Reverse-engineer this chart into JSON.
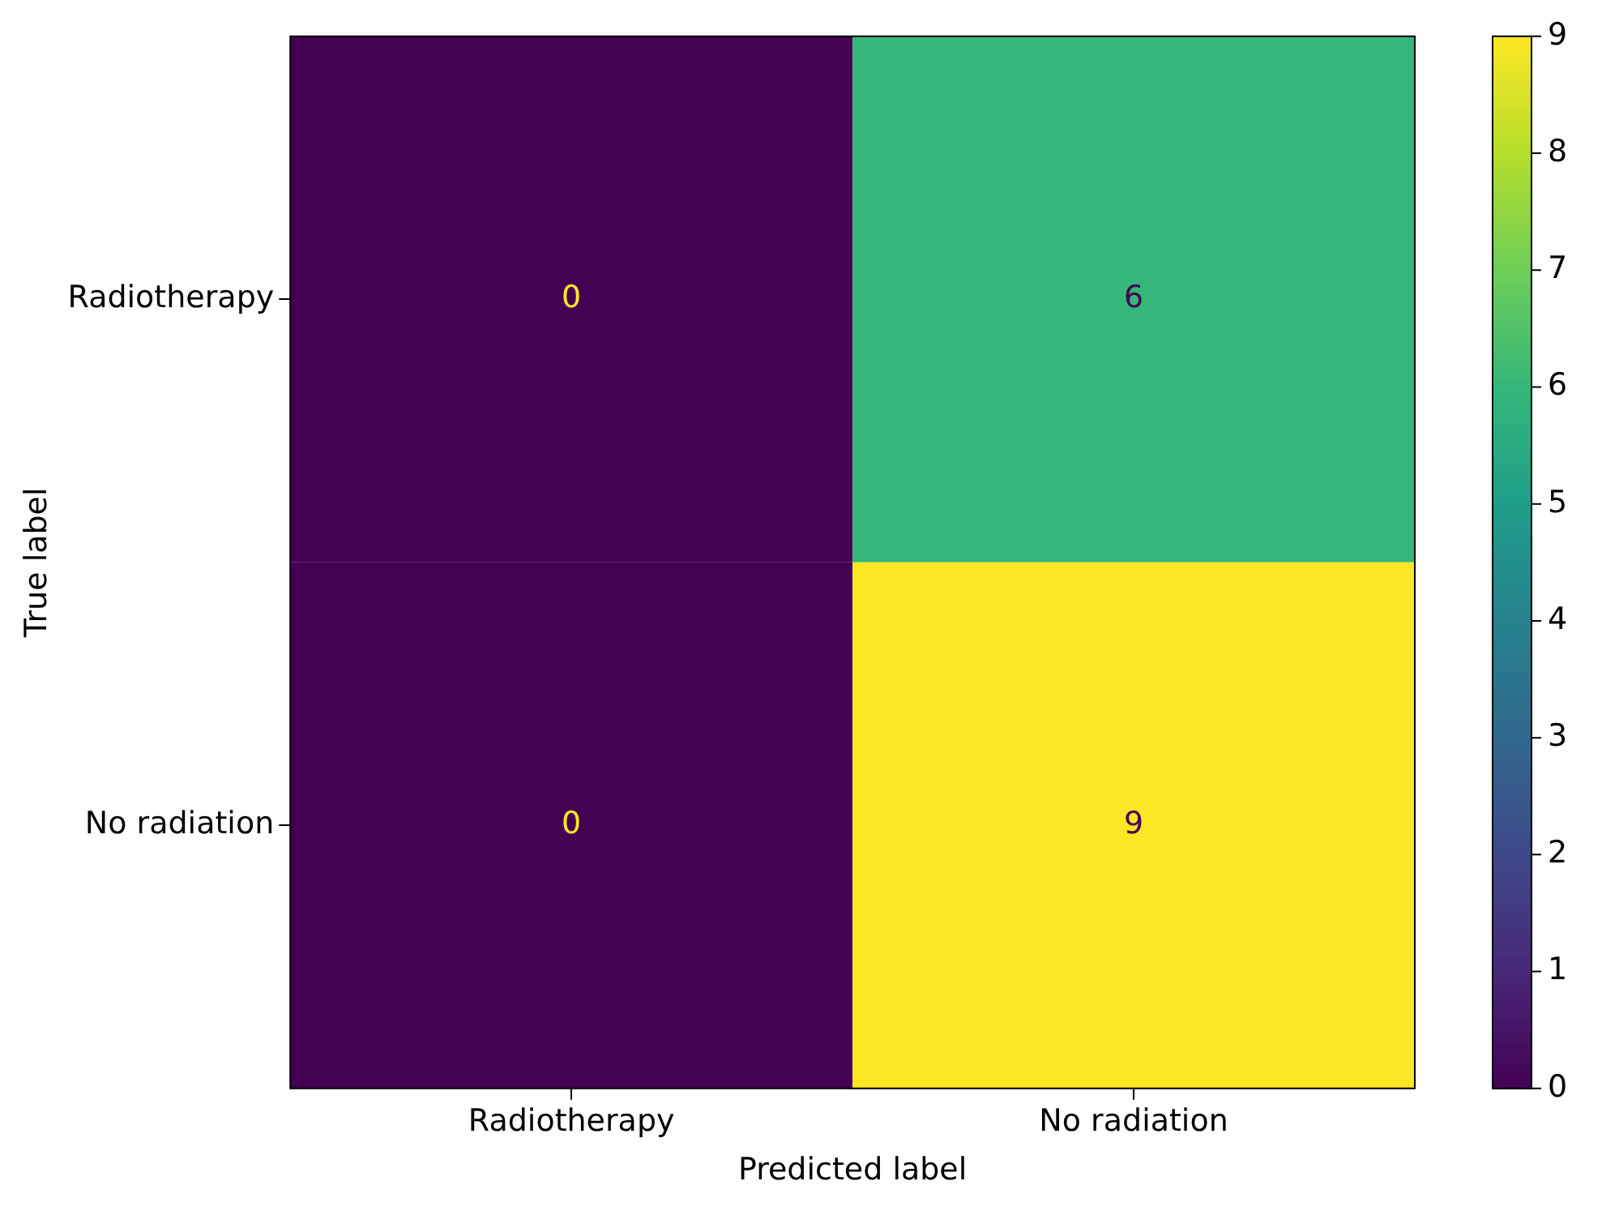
{
  "chart_data": {
    "type": "heatmap",
    "xlabel": "Predicted label",
    "ylabel": "True label",
    "categories": [
      "Radiotherapy",
      "No radiation"
    ],
    "y_categories": [
      "Radiotherapy",
      "No radiation"
    ],
    "cells": [
      [
        0,
        6
      ],
      [
        0,
        9
      ]
    ],
    "clim": [
      0,
      9
    ],
    "cticks": [
      0,
      1,
      2,
      3,
      4,
      5,
      6,
      7,
      8,
      9
    ],
    "data_labels": true
  }
}
